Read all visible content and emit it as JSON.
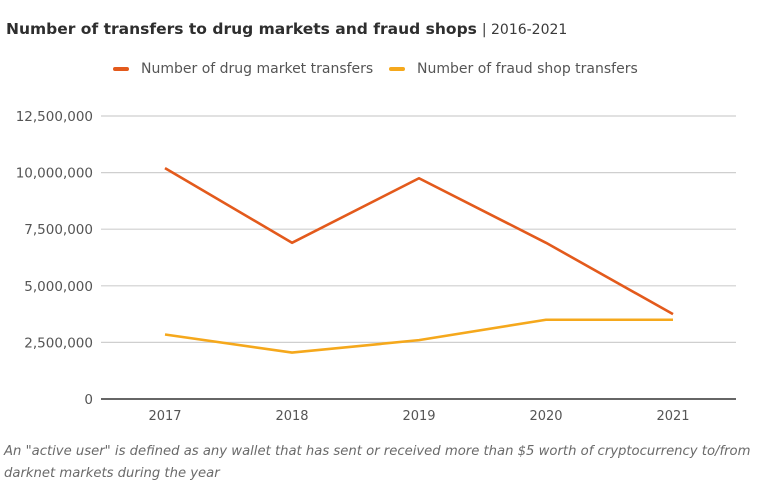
{
  "chart_data": {
    "type": "line",
    "title": "Number of transfers to drug markets and fraud shops",
    "subtitle": "2016-2021",
    "xlabel": "",
    "ylabel": "",
    "categories": [
      "2017",
      "2018",
      "2019",
      "2020",
      "2021"
    ],
    "ylim": [
      0,
      12500000
    ],
    "yticks": [
      0,
      2500000,
      5000000,
      7500000,
      10000000,
      12500000
    ],
    "ytick_labels": [
      "0",
      "2,500,000",
      "5,000,000",
      "7,500,000",
      "10,000,000",
      "12,500,000"
    ],
    "grid": true,
    "legend_position": "top-center",
    "series": [
      {
        "name": "Number of drug market transfers",
        "color": "#e35a1c",
        "values": [
          10200000,
          6900000,
          9750000,
          6900000,
          3750000
        ]
      },
      {
        "name": "Number of fraud shop transfers",
        "color": "#f5a81c",
        "values": [
          2850000,
          2050000,
          2600000,
          3500000,
          3500000
        ]
      }
    ],
    "footnote": "An \"active user\" is defined as any wallet that has sent or received more than $5 worth of cryptocurrency to/from darknet markets during the year"
  }
}
